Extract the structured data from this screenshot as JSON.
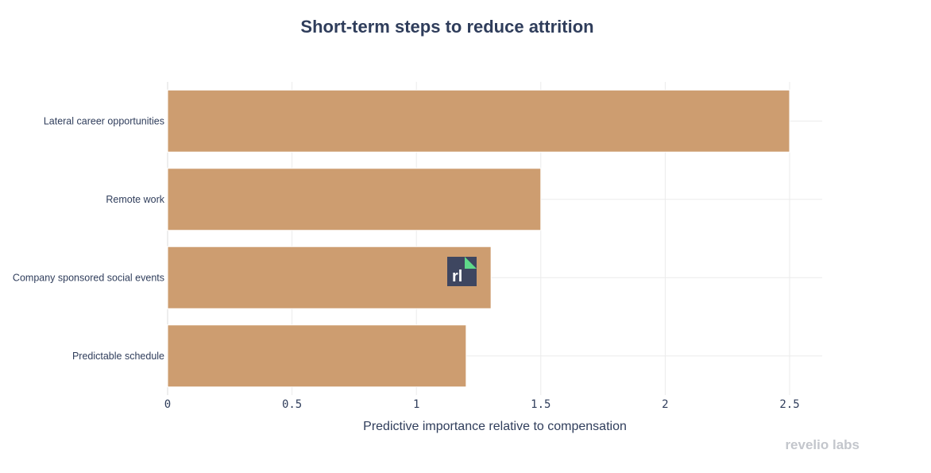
{
  "chart_data": {
    "type": "bar",
    "orientation": "horizontal",
    "title": "Short-term steps to reduce attrition",
    "xlabel": "Predictive importance relative to compensation",
    "ylabel": "",
    "categories": [
      "Lateral career opportunities",
      "Remote work",
      "Company sponsored social events",
      "Predictable schedule"
    ],
    "values": [
      2.5,
      1.5,
      1.3,
      1.2
    ],
    "xlim": [
      0,
      2.62
    ],
    "xticks": [
      0,
      0.5,
      1,
      1.5,
      2,
      2.5
    ],
    "xtick_labels": [
      "0",
      "0.5",
      "1",
      "1.5",
      "2",
      "2.5"
    ],
    "grid": true,
    "legend": "none",
    "colors": {
      "bar": "#cd9d70",
      "text": "#2f3d5b",
      "grid": "#ebebeb",
      "watermark_bg": "#3e4660",
      "watermark_corner": "#5fd98a",
      "brand": "#c3c6cc"
    }
  },
  "watermark": {
    "text": "rl"
  },
  "brand": {
    "text": "revelio labs"
  }
}
